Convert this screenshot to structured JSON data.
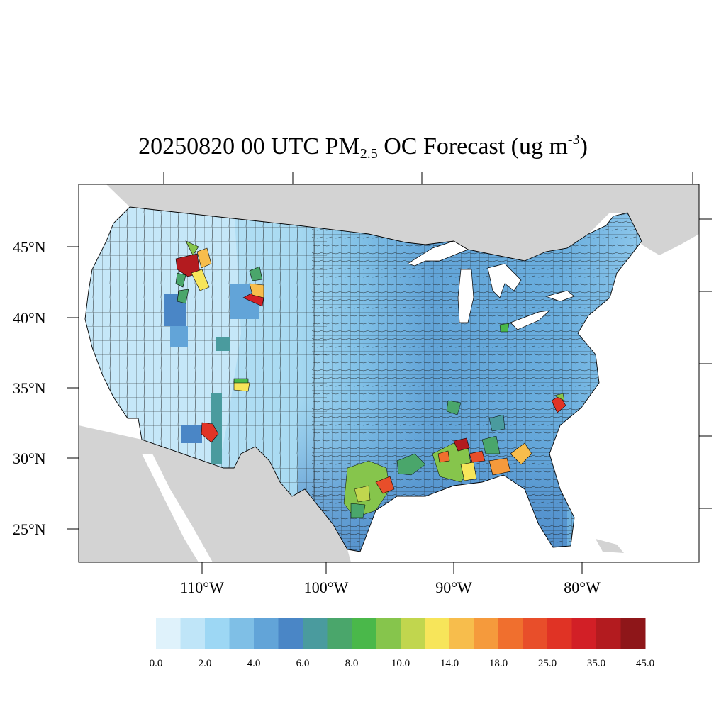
{
  "title": {
    "prefix": "20250820 00 UTC PM",
    "subscript": "2.5",
    "middle": " OC Forecast (ug m",
    "superscript": "-3",
    "suffix": ")"
  },
  "map": {
    "region": "Contiguous United States counties",
    "latitude_labels": [
      "45°N",
      "40°N",
      "35°N",
      "30°N",
      "25°N"
    ],
    "longitude_labels": [
      "110°W",
      "100°W",
      "90°W",
      "80°W"
    ],
    "land_color": "#d3d3d3",
    "water_color": "#ffffff",
    "hotspots": [
      {
        "area": "central Idaho",
        "level": "45.0"
      },
      {
        "area": "western Montana / Wyoming",
        "level": "35.0"
      },
      {
        "area": "southwest Colorado",
        "level": "14.0"
      },
      {
        "area": "southern Arizona",
        "level": "25.0"
      },
      {
        "area": "south Texas",
        "level": "25.0"
      },
      {
        "area": "Louisiana / Mississippi",
        "level": "35.0"
      },
      {
        "area": "Alabama / Georgia",
        "level": "25.0"
      },
      {
        "area": "South Carolina",
        "level": "25.0"
      }
    ]
  },
  "colorbar": {
    "colors": [
      "#dff2fb",
      "#bfe5f8",
      "#9dd7f4",
      "#7fbfe6",
      "#62a4d8",
      "#4a86c6",
      "#4a9b9e",
      "#4aa66b",
      "#4ab84a",
      "#86c54c",
      "#c1d64e",
      "#f7e55a",
      "#f7bd4c",
      "#f59a3c",
      "#f06f2e",
      "#e84e2a",
      "#e03325",
      "#d21f26",
      "#b31b1f",
      "#8e1619"
    ],
    "labels": [
      {
        "text": "0.0",
        "index": 0
      },
      {
        "text": "2.0",
        "index": 2
      },
      {
        "text": "4.0",
        "index": 4
      },
      {
        "text": "6.0",
        "index": 6
      },
      {
        "text": "8.0",
        "index": 8
      },
      {
        "text": "10.0",
        "index": 10
      },
      {
        "text": "14.0",
        "index": 12
      },
      {
        "text": "18.0",
        "index": 14
      },
      {
        "text": "25.0",
        "index": 16
      },
      {
        "text": "35.0",
        "index": 18
      },
      {
        "text": "45.0",
        "index": 20
      }
    ]
  }
}
